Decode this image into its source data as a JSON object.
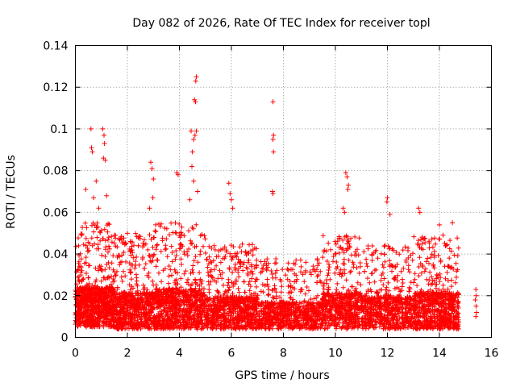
{
  "chart_data": {
    "type": "scatter",
    "title": "Day 082 of 2026, Rate Of TEC Index for receiver topl",
    "xlabel": "GPS time / hours",
    "ylabel": "ROTI / TECUs",
    "xlim": [
      0,
      16
    ],
    "ylim": [
      0,
      0.14
    ],
    "x_ticks": [
      0,
      2,
      4,
      6,
      8,
      10,
      12,
      14,
      16
    ],
    "y_ticks": [
      0,
      0.02,
      0.04,
      0.06,
      0.08,
      0.1,
      0.12,
      0.14
    ],
    "x_tick_labels": [
      "0",
      "2",
      "4",
      "6",
      "8",
      "10",
      "12",
      "14",
      "16"
    ],
    "y_tick_labels": [
      "0",
      "0.02",
      "0.04",
      "0.06",
      "0.08",
      "0.1",
      "0.12",
      "0.14"
    ],
    "grid": true,
    "marker": "+",
    "series": [
      {
        "name": "ROTI",
        "color": "#ff0000",
        "points": [
          [
            0.6,
            0.1
          ],
          [
            0.62,
            0.091
          ],
          [
            0.65,
            0.089
          ],
          [
            1.05,
            0.1
          ],
          [
            1.1,
            0.097
          ],
          [
            1.12,
            0.093
          ],
          [
            1.08,
            0.086
          ],
          [
            1.15,
            0.085
          ],
          [
            1.2,
            0.068
          ],
          [
            0.8,
            0.075
          ],
          [
            0.7,
            0.067
          ],
          [
            0.9,
            0.062
          ],
          [
            0.4,
            0.071
          ],
          [
            2.9,
            0.084
          ],
          [
            2.95,
            0.081
          ],
          [
            3.0,
            0.076
          ],
          [
            2.98,
            0.067
          ],
          [
            2.85,
            0.062
          ],
          [
            3.9,
            0.079
          ],
          [
            3.95,
            0.078
          ],
          [
            4.45,
            0.099
          ],
          [
            4.5,
            0.089
          ],
          [
            4.55,
            0.095
          ],
          [
            4.6,
            0.097
          ],
          [
            4.65,
            0.099
          ],
          [
            4.58,
            0.114
          ],
          [
            4.62,
            0.113
          ],
          [
            4.65,
            0.125
          ],
          [
            4.63,
            0.123
          ],
          [
            4.48,
            0.082
          ],
          [
            4.4,
            0.066
          ],
          [
            4.55,
            0.075
          ],
          [
            4.7,
            0.07
          ],
          [
            5.9,
            0.074
          ],
          [
            5.95,
            0.069
          ],
          [
            6.0,
            0.066
          ],
          [
            6.05,
            0.062
          ],
          [
            7.6,
            0.113
          ],
          [
            7.62,
            0.097
          ],
          [
            7.6,
            0.095
          ],
          [
            7.62,
            0.089
          ],
          [
            7.58,
            0.07
          ],
          [
            7.6,
            0.069
          ],
          [
            10.4,
            0.079
          ],
          [
            10.45,
            0.077
          ],
          [
            10.5,
            0.073
          ],
          [
            10.48,
            0.071
          ],
          [
            10.3,
            0.062
          ],
          [
            10.35,
            0.06
          ],
          [
            12.0,
            0.067
          ],
          [
            11.98,
            0.065
          ],
          [
            12.1,
            0.059
          ],
          [
            13.2,
            0.062
          ],
          [
            13.25,
            0.06
          ],
          [
            14.5,
            0.055
          ],
          [
            14.0,
            0.054
          ],
          [
            15.4,
            0.023
          ],
          [
            15.42,
            0.02
          ],
          [
            15.38,
            0.018
          ],
          [
            15.41,
            0.015
          ],
          [
            15.43,
            0.012
          ],
          [
            15.4,
            0.01
          ]
        ],
        "bands": [
          {
            "x": [
              0.0,
              1.5
            ],
            "ymin": 0.005,
            "ymax": 0.055,
            "count": 900
          },
          {
            "x": [
              1.5,
              3.0
            ],
            "ymin": 0.004,
            "ymax": 0.05,
            "count": 650
          },
          {
            "x": [
              3.0,
              5.0
            ],
            "ymin": 0.004,
            "ymax": 0.055,
            "count": 850
          },
          {
            "x": [
              5.0,
              7.0
            ],
            "ymin": 0.004,
            "ymax": 0.045,
            "count": 750
          },
          {
            "x": [
              7.0,
              9.5
            ],
            "ymin": 0.004,
            "ymax": 0.038,
            "count": 750
          },
          {
            "x": [
              9.5,
              11.0
            ],
            "ymin": 0.004,
            "ymax": 0.05,
            "count": 550
          },
          {
            "x": [
              11.0,
              13.0
            ],
            "ymin": 0.004,
            "ymax": 0.045,
            "count": 650
          },
          {
            "x": [
              13.0,
              14.75
            ],
            "ymin": 0.004,
            "ymax": 0.05,
            "count": 700
          }
        ]
      }
    ]
  }
}
